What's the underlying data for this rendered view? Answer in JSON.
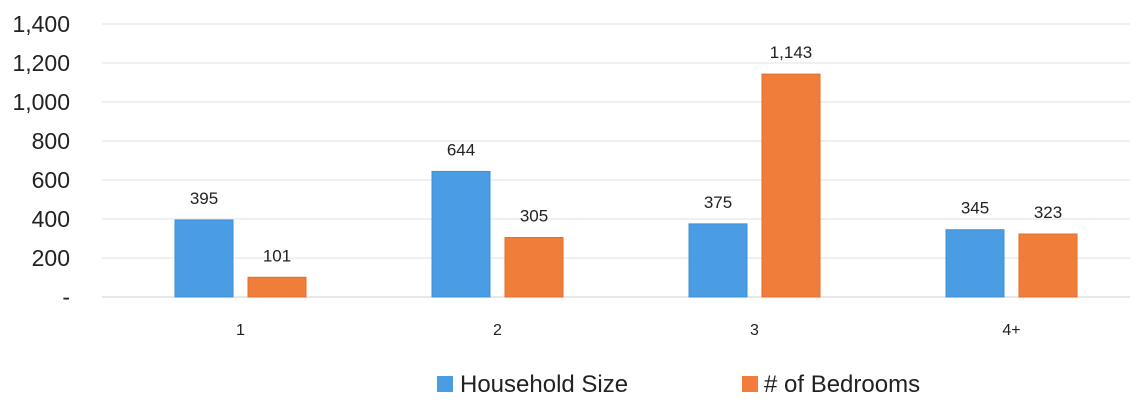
{
  "chart_data": {
    "type": "bar",
    "categories": [
      "1",
      "2",
      "3",
      "4+"
    ],
    "series": [
      {
        "name": "Household Size",
        "values": [
          395,
          644,
          375,
          345
        ],
        "labels": [
          "395",
          "644",
          "375",
          "345"
        ],
        "color": "#4a9de3"
      },
      {
        "name": "# of Bedrooms",
        "values": [
          101,
          305,
          1143,
          323
        ],
        "labels": [
          "101",
          "305",
          "1,143",
          "323"
        ],
        "color": "#f07d3a"
      }
    ],
    "ylim": [
      0,
      1400
    ],
    "yticks": [
      0,
      200,
      400,
      600,
      800,
      1000,
      1200,
      1400
    ],
    "ytick_labels": [
      "-",
      "200",
      "400",
      "600",
      "800",
      "1,000",
      "1,200",
      "1,400"
    ],
    "grid": true,
    "legend_position": "bottom-center",
    "title": "",
    "xlabel": "",
    "ylabel": ""
  }
}
